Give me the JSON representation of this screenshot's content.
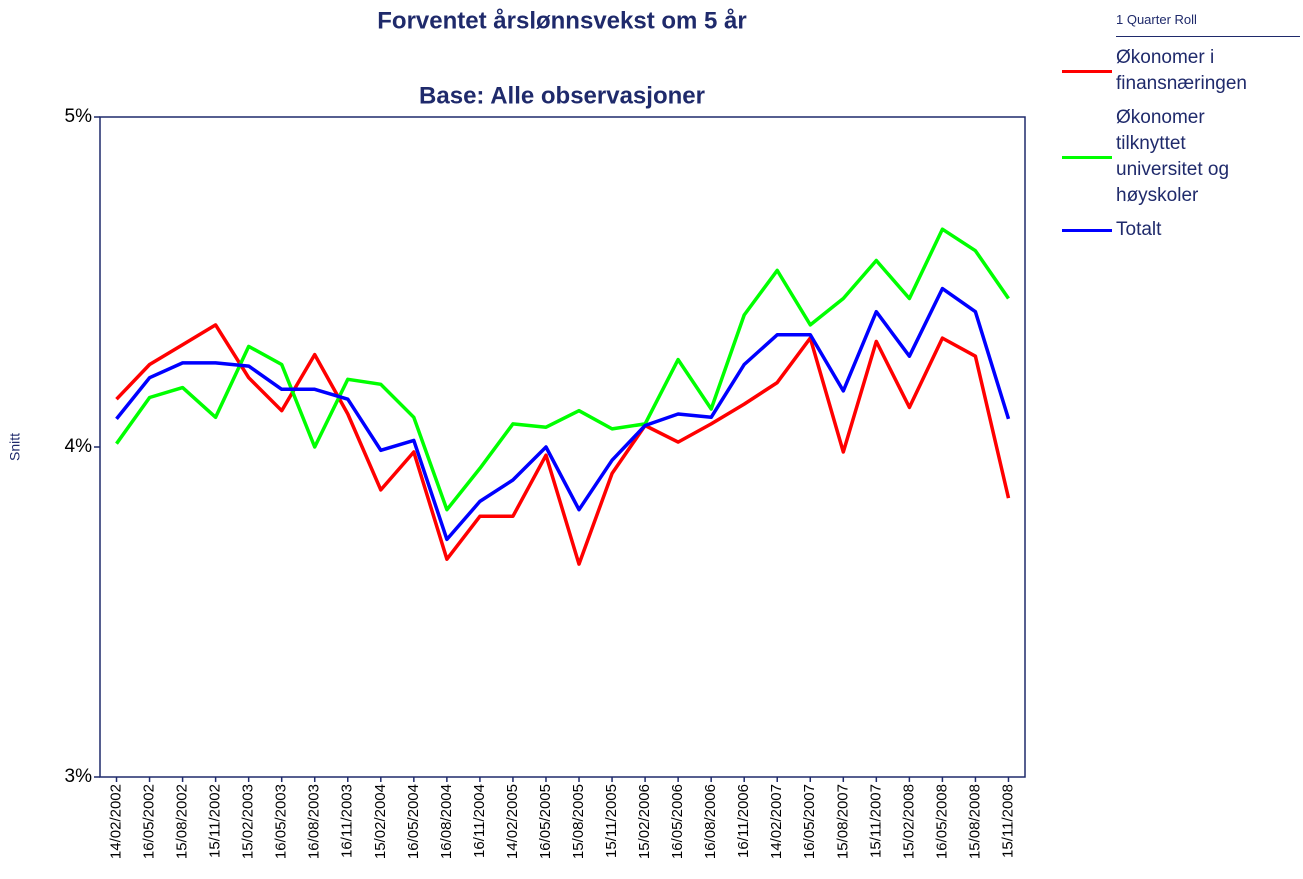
{
  "chart_data": {
    "type": "line",
    "title": "Forventet årslønnsvekst om 5 år",
    "subtitle": "Base: Alle observasjoner",
    "y_label": "Snitt",
    "legend_title": "1 Quarter Roll",
    "legend": "right",
    "categories": [
      "14/02/2002",
      "16/05/2002",
      "15/08/2002",
      "15/11/2002",
      "15/02/2003",
      "16/05/2003",
      "16/08/2003",
      "16/11/2003",
      "15/02/2004",
      "16/05/2004",
      "16/08/2004",
      "16/11/2004",
      "14/02/2005",
      "16/05/2005",
      "15/08/2005",
      "15/11/2005",
      "15/02/2006",
      "16/05/2006",
      "16/08/2006",
      "16/11/2006",
      "14/02/2007",
      "16/05/2007",
      "15/08/2007",
      "15/11/2007",
      "15/02/2008",
      "16/05/2008",
      "15/08/2008",
      "15/11/2008"
    ],
    "series": [
      {
        "name": "Økonomer i finansnæringen",
        "color": "#ff0000",
        "values": [
          4.145,
          4.25,
          4.31,
          4.37,
          4.21,
          4.11,
          4.28,
          4.1,
          3.87,
          3.985,
          3.66,
          3.79,
          3.79,
          3.975,
          3.645,
          3.92,
          4.065,
          4.015,
          4.07,
          4.13,
          4.195,
          4.33,
          3.985,
          4.32,
          4.12,
          4.33,
          4.275,
          3.845
        ]
      },
      {
        "name": "Økonomer tilknyttet universitet og høyskoler",
        "color": "#00ff00",
        "values": [
          4.01,
          4.15,
          4.18,
          4.09,
          4.305,
          4.25,
          4.0,
          4.205,
          4.19,
          4.09,
          3.81,
          3.935,
          4.07,
          4.06,
          4.11,
          4.055,
          4.07,
          4.265,
          4.115,
          4.4,
          4.535,
          4.37,
          4.45,
          4.565,
          4.45,
          4.66,
          4.595,
          4.45
        ]
      },
      {
        "name": "Totalt",
        "color": "#0000ff",
        "values": [
          4.085,
          4.21,
          4.255,
          4.255,
          4.245,
          4.175,
          4.175,
          4.145,
          3.99,
          4.02,
          3.72,
          3.835,
          3.9,
          4.0,
          3.81,
          3.96,
          4.065,
          4.1,
          4.09,
          4.25,
          4.34,
          4.34,
          4.17,
          4.41,
          4.275,
          4.48,
          4.41,
          4.085
        ]
      }
    ],
    "ylim": [
      3,
      5
    ],
    "yticks": [
      {
        "value": 3,
        "label": "3%"
      },
      {
        "value": 4,
        "label": "4%"
      },
      {
        "value": 5,
        "label": "5%"
      }
    ],
    "axis_color": "#1f2a6b"
  }
}
